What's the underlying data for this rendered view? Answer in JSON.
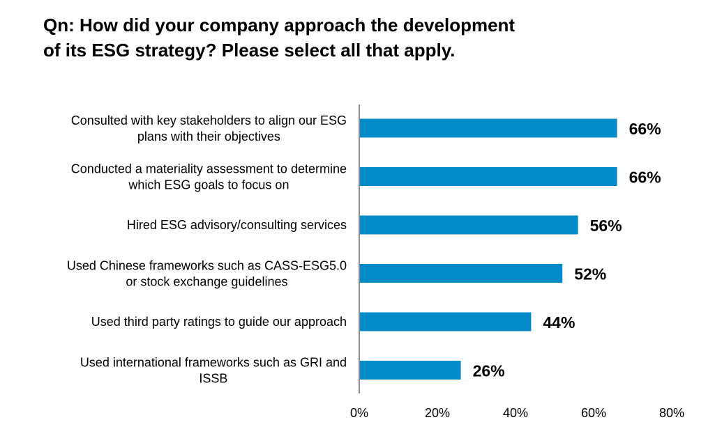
{
  "title_lines": [
    "Qn: How did your company approach the development",
    "of its ESG strategy? Please select all that apply."
  ],
  "colors": {
    "bar": "#038BC9",
    "axis": "#8C8C8C"
  },
  "chart_data": {
    "type": "bar",
    "orientation": "horizontal",
    "title": "Qn: How did your company approach the development of its ESG strategy? Please select all that apply.",
    "categories": [
      [
        "Consulted with key stakeholders to align our ESG",
        "plans with their objectives"
      ],
      [
        "Conducted a materiality assessment to determine",
        "which ESG goals to focus on"
      ],
      [
        "Hired ESG advisory/consulting services"
      ],
      [
        "Used Chinese frameworks such as CASS-ESG5.0",
        "or stock exchange guidelines"
      ],
      [
        "Used third party ratings to guide our approach"
      ],
      [
        "Used international frameworks such as GRI and",
        "ISSB"
      ]
    ],
    "values": [
      66,
      66,
      56,
      52,
      44,
      26
    ],
    "data_labels": [
      "66%",
      "66%",
      "56%",
      "52%",
      "44%",
      "26%"
    ],
    "xlim": [
      0,
      80
    ],
    "xticks": [
      0,
      20,
      40,
      60,
      80
    ],
    "xtick_labels": [
      "0%",
      "20%",
      "40%",
      "60%",
      "80%"
    ],
    "grid": false,
    "legend": "none"
  }
}
